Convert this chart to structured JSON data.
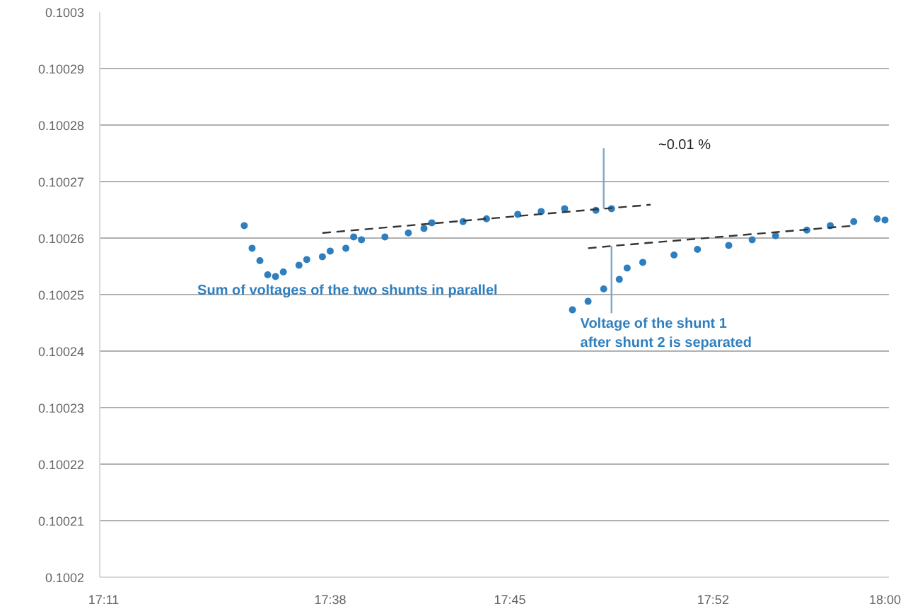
{
  "chart_data": {
    "type": "scatter",
    "marker": "circle",
    "grid": "y",
    "categories": [
      "17:11",
      null,
      null,
      null,
      null,
      null,
      null,
      null,
      null,
      null,
      null,
      null,
      null,
      null,
      null,
      null,
      null,
      null,
      null,
      null,
      null,
      null,
      null,
      null,
      null,
      null,
      null,
      null,
      null,
      "17:38",
      null,
      null,
      null,
      null,
      null,
      null,
      null,
      null,
      null,
      null,
      null,
      null,
      null,
      null,
      null,
      null,
      null,
      null,
      null,
      null,
      null,
      null,
      "17:45",
      null,
      null,
      null,
      null,
      null,
      null,
      null,
      null,
      null,
      null,
      null,
      null,
      null,
      null,
      null,
      null,
      null,
      null,
      null,
      null,
      null,
      null,
      null,
      null,
      null,
      "17:52",
      null,
      null,
      null,
      null,
      null,
      null,
      null,
      null,
      null,
      null,
      null,
      null,
      null,
      null,
      null,
      null,
      null,
      null,
      null,
      null,
      null,
      "18:00"
    ],
    "ylim": [
      0.1002,
      0.1003
    ],
    "yticks": [
      0.1002,
      0.10021,
      0.10022,
      0.10023,
      0.10024,
      0.10025,
      0.10026,
      0.10027,
      0.10028,
      0.10029,
      0.1003
    ],
    "series": [
      {
        "name": "Sum of voltages of the two shunts in parallel",
        "color": "#2f7fbf",
        "values": [
          null,
          null,
          null,
          null,
          null,
          null,
          null,
          null,
          null,
          null,
          null,
          null,
          null,
          null,
          null,
          null,
          null,
          null,
          0.1002622,
          0.1002582,
          0.100256,
          0.1002535,
          0.1002532,
          0.100254,
          null,
          0.1002552,
          0.1002562,
          null,
          0.1002567,
          0.1002577,
          null,
          0.1002582,
          0.1002602,
          0.1002597,
          null,
          null,
          0.1002602,
          null,
          null,
          0.1002609,
          null,
          0.1002617,
          0.1002627,
          null,
          null,
          null,
          0.1002629,
          null,
          null,
          0.1002634,
          null,
          null,
          null,
          0.1002642,
          null,
          null,
          0.1002647,
          null,
          null,
          0.1002652,
          null,
          null,
          null,
          0.1002649,
          null,
          0.1002652,
          null,
          null,
          null,
          null,
          null,
          null,
          null,
          null,
          null,
          null,
          null,
          null,
          null,
          null,
          null,
          null,
          null,
          null,
          null,
          null,
          null,
          null,
          null,
          null,
          null,
          null,
          null,
          null,
          null,
          null,
          null,
          null,
          null,
          null,
          null
        ]
      },
      {
        "name": "Voltage of the shunt 1 after shunt 2 is separated",
        "color": "#2f7fbf",
        "values": [
          null,
          null,
          null,
          null,
          null,
          null,
          null,
          null,
          null,
          null,
          null,
          null,
          null,
          null,
          null,
          null,
          null,
          null,
          null,
          null,
          null,
          null,
          null,
          null,
          null,
          null,
          null,
          null,
          null,
          null,
          null,
          null,
          null,
          null,
          null,
          null,
          null,
          null,
          null,
          null,
          null,
          null,
          null,
          null,
          null,
          null,
          null,
          null,
          null,
          null,
          null,
          null,
          null,
          null,
          null,
          null,
          null,
          null,
          null,
          null,
          0.1002473,
          null,
          0.1002488,
          null,
          0.100251,
          null,
          0.1002527,
          0.1002547,
          null,
          0.1002557,
          null,
          null,
          null,
          0.100257,
          null,
          null,
          0.100258,
          null,
          null,
          null,
          0.1002587,
          null,
          null,
          0.1002597,
          null,
          null,
          0.1002604,
          null,
          null,
          null,
          0.1002614,
          null,
          null,
          0.1002622,
          null,
          null,
          0.1002629,
          null,
          null,
          0.1002634,
          0.1002632
        ]
      },
      {
        "type": "line",
        "marker": "none",
        "line_style": "dashed",
        "color": "#333333",
        "values": [
          null,
          null,
          null,
          null,
          null,
          null,
          null,
          null,
          null,
          null,
          null,
          null,
          null,
          null,
          null,
          null,
          null,
          null,
          null,
          null,
          null,
          null,
          null,
          null,
          null,
          null,
          null,
          null,
          0.1002609,
          null,
          null,
          null,
          null,
          null,
          null,
          null,
          null,
          null,
          null,
          null,
          null,
          null,
          null,
          null,
          null,
          null,
          null,
          null,
          null,
          null,
          null,
          null,
          null,
          null,
          null,
          null,
          null,
          null,
          null,
          null,
          null,
          null,
          null,
          null,
          0.1002652,
          null,
          null,
          null,
          null,
          null,
          0.1002659,
          null,
          null,
          null,
          null,
          null,
          null,
          null,
          null,
          null,
          null,
          null,
          null,
          null,
          null,
          null,
          null,
          null,
          null,
          null,
          null,
          null,
          null,
          null,
          null,
          null,
          null,
          null,
          null,
          null,
          null
        ],
        "errors": [
          null,
          null,
          null,
          null,
          null,
          null,
          null,
          null,
          null,
          null,
          null,
          null,
          null,
          null,
          null,
          null,
          null,
          null,
          null,
          null,
          null,
          null,
          null,
          null,
          null,
          null,
          null,
          null,
          null,
          null,
          null,
          null,
          null,
          null,
          null,
          null,
          null,
          null,
          null,
          null,
          null,
          null,
          null,
          null,
          null,
          null,
          null,
          null,
          null,
          null,
          null,
          null,
          null,
          null,
          null,
          null,
          null,
          null,
          null,
          null,
          null,
          null,
          null,
          null,
          [
            0.1002652,
            0.1002759
          ],
          null,
          null,
          null,
          null,
          null,
          null,
          null,
          null,
          null,
          null,
          null,
          null,
          null,
          null,
          null,
          null,
          null,
          null,
          null,
          null,
          null,
          null,
          null,
          null,
          null,
          null,
          null,
          null,
          null,
          null,
          null,
          null,
          null,
          null,
          null,
          null
        ]
      },
      {
        "type": "line",
        "marker": "none",
        "line_style": "dashed",
        "color": "#333333",
        "values": [
          null,
          null,
          null,
          null,
          null,
          null,
          null,
          null,
          null,
          null,
          null,
          null,
          null,
          null,
          null,
          null,
          null,
          null,
          null,
          null,
          null,
          null,
          null,
          null,
          null,
          null,
          null,
          null,
          null,
          null,
          null,
          null,
          null,
          null,
          null,
          null,
          null,
          null,
          null,
          null,
          null,
          null,
          null,
          null,
          null,
          null,
          null,
          null,
          null,
          null,
          null,
          null,
          null,
          null,
          null,
          null,
          null,
          null,
          null,
          null,
          null,
          null,
          0.1002582,
          null,
          null,
          0.1002586,
          null,
          null,
          null,
          null,
          null,
          null,
          null,
          null,
          null,
          null,
          null,
          null,
          null,
          null,
          null,
          null,
          null,
          null,
          null,
          null,
          null,
          null,
          null,
          null,
          null,
          null,
          null,
          null,
          null,
          null,
          0.1002622,
          null,
          null,
          null,
          null
        ],
        "errors": [
          null,
          null,
          null,
          null,
          null,
          null,
          null,
          null,
          null,
          null,
          null,
          null,
          null,
          null,
          null,
          null,
          null,
          null,
          null,
          null,
          null,
          null,
          null,
          null,
          null,
          null,
          null,
          null,
          null,
          null,
          null,
          null,
          null,
          null,
          null,
          null,
          null,
          null,
          null,
          null,
          null,
          null,
          null,
          null,
          null,
          null,
          null,
          null,
          null,
          null,
          null,
          null,
          null,
          null,
          null,
          null,
          null,
          null,
          null,
          null,
          null,
          null,
          null,
          null,
          null,
          [
            0.1002467,
            0.1002586
          ],
          null,
          null,
          null,
          null,
          null,
          null,
          null,
          null,
          null,
          null,
          null,
          null,
          null,
          null,
          null,
          null,
          null,
          null,
          null,
          null,
          null,
          null,
          null,
          null,
          null,
          null,
          null,
          null,
          null,
          null,
          null,
          null,
          null,
          null,
          null
        ]
      }
    ],
    "annotations": [
      "~0.01 %"
    ]
  }
}
